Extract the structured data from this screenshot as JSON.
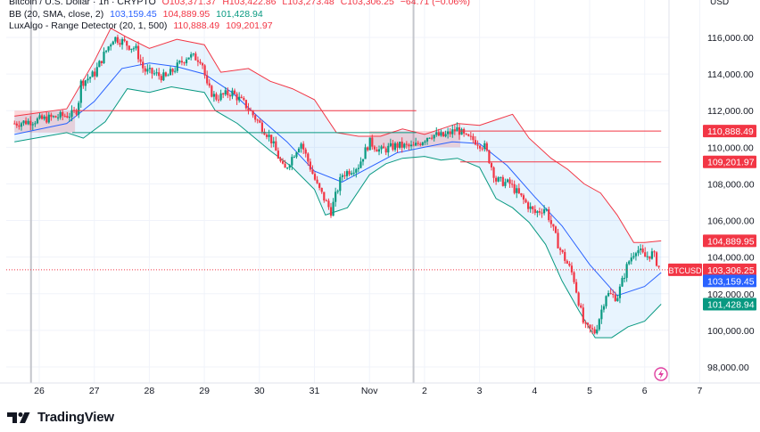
{
  "header": {
    "line1": {
      "symbol": "Bitcoin / U.S. Dollar · 1h · CRYPTO",
      "o": "O103,371.37",
      "h": "H103,422.86",
      "l": "L103,273.48",
      "c": "C103,306.25",
      "chg": "−64.71 (−0.06%)"
    },
    "line2": {
      "label": "BB (20, SMA, close, 2)",
      "v1": "103,159.45",
      "v2": "104,889.95",
      "v3": "101,428.94"
    },
    "line3": {
      "label": "LuxAlgo - Range Detector (20, 1, 500)",
      "v1": "110,888.49",
      "v2": "109,201.97"
    }
  },
  "currency": "USD",
  "brand": "TradingView",
  "colors": {
    "up": "#089981",
    "down": "#f23645",
    "basis": "#2962ff",
    "upper": "#f23645",
    "lower": "#089981",
    "fill": "#e3f2fd",
    "range": "#f23645"
  },
  "chart_data": {
    "type": "candlestick",
    "ylim": [
      97000,
      117200
    ],
    "y_ticks": [
      98000,
      100000,
      102000,
      104000,
      106000,
      108000,
      110000,
      112000,
      114000,
      116000
    ],
    "y_tick_labels": [
      "98,000.00",
      "100,000.00",
      "102,000.00",
      "104,000.00",
      "106,000.00",
      "108,000.00",
      "110,000.00",
      "112,000.00",
      "114,000.00",
      "116,000.00"
    ],
    "x_ticks": [
      0,
      1,
      2,
      3,
      4,
      5,
      6,
      7,
      8,
      9,
      10,
      11,
      12
    ],
    "x_tick_labels": [
      "26",
      "27",
      "28",
      "29",
      "30",
      "31",
      "Nov",
      "2",
      "3",
      "4",
      "5",
      "6",
      "7"
    ],
    "xlim": [
      -0.5,
      12.3
    ],
    "price_path": [
      [
        -0.45,
        111300
      ],
      [
        0,
        111500
      ],
      [
        0.6,
        111800
      ],
      [
        0.7,
        112100
      ],
      [
        0.75,
        113500
      ],
      [
        1,
        114000
      ],
      [
        1.2,
        115200
      ],
      [
        1.35,
        116000
      ],
      [
        1.5,
        115800
      ],
      [
        1.65,
        115500
      ],
      [
        1.75,
        115400
      ],
      [
        1.9,
        114200
      ],
      [
        2.1,
        114000
      ],
      [
        2.3,
        113800
      ],
      [
        2.5,
        114400
      ],
      [
        2.7,
        115000
      ],
      [
        2.95,
        114800
      ],
      [
        3.05,
        113300
      ],
      [
        3.2,
        112700
      ],
      [
        3.5,
        113000
      ],
      [
        3.75,
        112300
      ],
      [
        3.9,
        111700
      ],
      [
        4.2,
        110500
      ],
      [
        4.45,
        108700
      ],
      [
        4.75,
        110300
      ],
      [
        5.05,
        107900
      ],
      [
        5.3,
        106500
      ],
      [
        5.5,
        108500
      ],
      [
        5.8,
        109000
      ],
      [
        6.0,
        110300
      ],
      [
        6.2,
        109800
      ],
      [
        6.5,
        110100
      ],
      [
        6.8,
        110000
      ],
      [
        7.1,
        110700
      ],
      [
        7.35,
        110600
      ],
      [
        7.6,
        111000
      ],
      [
        7.75,
        110500
      ],
      [
        7.9,
        110400
      ],
      [
        8.1,
        110000
      ],
      [
        8.3,
        108200
      ],
      [
        8.55,
        108000
      ],
      [
        8.8,
        107100
      ],
      [
        9.0,
        106400
      ],
      [
        9.2,
        106700
      ],
      [
        9.45,
        104500
      ],
      [
        9.7,
        103000
      ],
      [
        9.9,
        100200
      ],
      [
        10.1,
        99900
      ],
      [
        10.3,
        102000
      ],
      [
        10.5,
        101800
      ],
      [
        10.7,
        103700
      ],
      [
        10.85,
        104500
      ],
      [
        11.0,
        104000
      ],
      [
        11.15,
        104200
      ],
      [
        11.28,
        103306
      ]
    ],
    "series": [
      {
        "name": "BB basis",
        "points": [
          [
            -0.45,
            110700
          ],
          [
            0.5,
            111300
          ],
          [
            1,
            112500
          ],
          [
            1.5,
            114300
          ],
          [
            2,
            114600
          ],
          [
            2.5,
            114400
          ],
          [
            3,
            114000
          ],
          [
            3.5,
            113000
          ],
          [
            4,
            111600
          ],
          [
            4.5,
            110300
          ],
          [
            5,
            108700
          ],
          [
            5.5,
            108100
          ],
          [
            6,
            108900
          ],
          [
            6.5,
            109700
          ],
          [
            7,
            110000
          ],
          [
            7.5,
            110300
          ],
          [
            8,
            110200
          ],
          [
            8.5,
            109000
          ],
          [
            9,
            107300
          ],
          [
            9.5,
            105700
          ],
          [
            10,
            103600
          ],
          [
            10.5,
            101900
          ],
          [
            11,
            102400
          ],
          [
            11.3,
            103159
          ]
        ]
      },
      {
        "name": "BB upper",
        "points": [
          [
            -0.45,
            111700
          ],
          [
            0.5,
            112100
          ],
          [
            1,
            114700
          ],
          [
            1.3,
            116500
          ],
          [
            1.6,
            116000
          ],
          [
            2,
            115400
          ],
          [
            2.5,
            115900
          ],
          [
            3,
            115600
          ],
          [
            3.3,
            114100
          ],
          [
            3.8,
            114300
          ],
          [
            4.2,
            113600
          ],
          [
            4.6,
            113200
          ],
          [
            5,
            112600
          ],
          [
            5.4,
            110800
          ],
          [
            5.8,
            110600
          ],
          [
            6.2,
            110600
          ],
          [
            6.6,
            111000
          ],
          [
            7,
            110700
          ],
          [
            7.3,
            111000
          ],
          [
            7.6,
            111300
          ],
          [
            8,
            111200
          ],
          [
            8.3,
            111500
          ],
          [
            8.6,
            111800
          ],
          [
            8.9,
            110500
          ],
          [
            9.3,
            109400
          ],
          [
            9.6,
            108800
          ],
          [
            9.9,
            108000
          ],
          [
            10.2,
            107500
          ],
          [
            10.5,
            106300
          ],
          [
            10.8,
            104800
          ],
          [
            11,
            104800
          ],
          [
            11.3,
            104890
          ]
        ]
      },
      {
        "name": "BB lower",
        "points": [
          [
            -0.45,
            110300
          ],
          [
            0.5,
            110800
          ],
          [
            0.8,
            110500
          ],
          [
            1.2,
            111400
          ],
          [
            1.6,
            113200
          ],
          [
            2,
            113000
          ],
          [
            2.4,
            113300
          ],
          [
            3,
            113000
          ],
          [
            3.2,
            112000
          ],
          [
            3.6,
            111300
          ],
          [
            3.8,
            110800
          ],
          [
            4.2,
            109800
          ],
          [
            4.6,
            108900
          ],
          [
            5,
            107700
          ],
          [
            5.2,
            106300
          ],
          [
            5.6,
            106700
          ],
          [
            6,
            108500
          ],
          [
            6.3,
            109100
          ],
          [
            6.6,
            109400
          ],
          [
            7,
            109500
          ],
          [
            7.3,
            109300
          ],
          [
            7.6,
            109400
          ],
          [
            8,
            108900
          ],
          [
            8.3,
            107200
          ],
          [
            8.6,
            106700
          ],
          [
            8.9,
            105900
          ],
          [
            9.2,
            104700
          ],
          [
            9.5,
            102700
          ],
          [
            9.8,
            101100
          ],
          [
            10.1,
            99600
          ],
          [
            10.4,
            99600
          ],
          [
            10.7,
            100200
          ],
          [
            11,
            100500
          ],
          [
            11.3,
            101429
          ]
        ]
      }
    ],
    "ranges": [
      {
        "x0": -0.45,
        "x1": 0.65,
        "y0": 110800,
        "y1": 112000
      },
      {
        "x0": 6.0,
        "x1": 7.65,
        "y0": 110000,
        "y1": 110888
      }
    ],
    "range_lines": [
      {
        "x0": 0.6,
        "x1": 6.85,
        "y": 112000,
        "color": "#f23645"
      },
      {
        "x0": 0.6,
        "x1": 6.85,
        "y": 110800,
        "color": "#089981"
      },
      {
        "x0": 7.65,
        "x1": 11.3,
        "y": 110888,
        "color": "#f23645"
      },
      {
        "x0": 7.65,
        "x1": 11.3,
        "y": 109202,
        "color": "#f23645"
      }
    ],
    "price_line": 103306,
    "price_labels": [
      {
        "text": "110,888.49",
        "y": 110888,
        "color": "#f23645"
      },
      {
        "text": "109,201.97",
        "y": 109202,
        "color": "#f23645"
      },
      {
        "text": "104,889.95",
        "y": 104890,
        "color": "#f23645"
      },
      {
        "text": "103,306.25",
        "y": 103306,
        "color": "#f23645",
        "tag": "BTCUSD"
      },
      {
        "text": "103,159.45",
        "y": 102700,
        "color": "#2962ff"
      },
      {
        "text": "101,428.94",
        "y": 101429,
        "color": "#089981"
      }
    ],
    "vlines": [
      -0.15,
      6.8
    ]
  }
}
